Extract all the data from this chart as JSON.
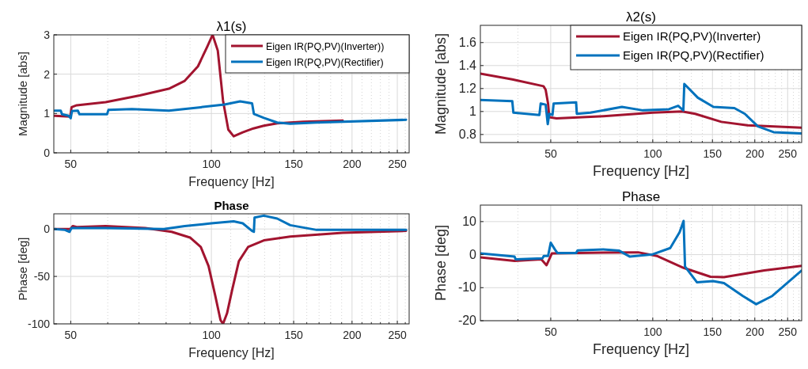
{
  "chart_data": [
    {
      "type": "line",
      "title": "λ1(s)",
      "xlabel": "Frequency [Hz]",
      "ylabel": "Magnitude [abs]",
      "log": "x",
      "grid": true,
      "legend": "top right",
      "xlim": [
        46,
        265
      ],
      "xticks": [
        50,
        {
          "value": 60,
          "label": null
        },
        {
          "value": 70,
          "label": null
        },
        {
          "value": 80,
          "label": null
        },
        {
          "value": 90,
          "label": null
        },
        100,
        {
          "value": 110,
          "label": null
        },
        {
          "value": 120,
          "label": null
        },
        {
          "value": 130,
          "label": null
        },
        {
          "value": 140,
          "label": null
        },
        150,
        {
          "value": 160,
          "label": null
        },
        {
          "value": 170,
          "label": null
        },
        {
          "value": 180,
          "label": null
        },
        {
          "value": 190,
          "label": null
        },
        200,
        {
          "value": 210,
          "label": null
        },
        {
          "value": 220,
          "label": null
        },
        {
          "value": 230,
          "label": null
        },
        {
          "value": 240,
          "label": null
        },
        250,
        {
          "value": 260,
          "label": null
        }
      ],
      "ylim": [
        0,
        3
      ],
      "yticks": [
        0,
        1,
        2,
        3
      ],
      "series": [
        {
          "name": "Eigen IR(PQ,PV)(Inverter))",
          "color": "#a2142f",
          "x": [
            46.2,
            49.9,
            50.2,
            51.5,
            59.4,
            70.3,
            81.1,
            87.7,
            93.6,
            98.0,
            100.6,
            103.2,
            105.9,
            108.7,
            111.6,
            116.7,
            123,
            129.5,
            138.3,
            157.4,
            191
          ],
          "values": [
            0.94,
            0.92,
            1.16,
            1.21,
            1.29,
            1.46,
            1.63,
            1.83,
            2.2,
            2.7,
            3.0,
            2.6,
            1.33,
            0.59,
            0.42,
            0.52,
            0.62,
            0.69,
            0.75,
            0.79,
            0.82
          ]
        },
        {
          "name": "Eigen IR(PQ,PV)(Rectifier)",
          "color": "#0072bd",
          "x": [
            46.2,
            47.6,
            47.9,
            49.5,
            50,
            50.3,
            51.8,
            52.2,
            59.8,
            60.2,
            67.6,
            81.1,
            94.9,
            106.7,
            115.2,
            122.2,
            123.3,
            129.5,
            138.3,
            147.5,
            168,
            261
          ],
          "values": [
            1.07,
            1.07,
            0.98,
            0.94,
            0.88,
            1.06,
            1.07,
            0.98,
            0.98,
            1.09,
            1.11,
            1.07,
            1.16,
            1.23,
            1.31,
            1.26,
            0.99,
            0.89,
            0.77,
            0.74,
            0.77,
            0.84
          ]
        }
      ]
    },
    {
      "type": "line",
      "title": "λ2(s)",
      "xlabel": "Frequency [Hz]",
      "ylabel": "Magnitude [abs]",
      "log": "x",
      "grid": true,
      "legend": "top right",
      "xlim": [
        31,
        275
      ],
      "xticks": [
        {
          "value": 40,
          "label": null
        },
        50,
        {
          "value": 60,
          "label": null
        },
        {
          "value": 70,
          "label": null
        },
        {
          "value": 80,
          "label": null
        },
        {
          "value": 90,
          "label": null
        },
        100,
        {
          "value": 110,
          "label": null
        },
        {
          "value": 120,
          "label": null
        },
        {
          "value": 130,
          "label": null
        },
        {
          "value": 140,
          "label": null
        },
        150,
        {
          "value": 160,
          "label": null
        },
        {
          "value": 170,
          "label": null
        },
        {
          "value": 180,
          "label": null
        },
        {
          "value": 190,
          "label": null
        },
        200,
        {
          "value": 210,
          "label": null
        },
        {
          "value": 220,
          "label": null
        },
        {
          "value": 230,
          "label": null
        },
        {
          "value": 240,
          "label": null
        },
        250,
        {
          "value": 260,
          "label": null
        },
        {
          "value": 270,
          "label": null
        }
      ],
      "ylim": [
        0.73,
        1.75
      ],
      "yticks": [
        0.8,
        1,
        1.2,
        1.4,
        1.6
      ],
      "series": [
        {
          "name": "Eigen IR(PQ,PV)(Inverter)",
          "color": "#a2142f",
          "x": [
            31,
            38.5,
            47.6,
            48.3,
            49.1,
            49.5,
            52.0,
            71.6,
            100,
            122,
            133.4,
            159.3,
            190.3,
            275
          ],
          "values": [
            1.33,
            1.28,
            1.22,
            1.19,
            1.07,
            0.95,
            0.94,
            0.96,
            0.99,
            1.0,
            0.98,
            0.91,
            0.88,
            0.86
          ]
        },
        {
          "name": "Eigen IR(PQ,PV)(Rectifier)",
          "color": "#0072bd",
          "x": [
            31,
            38.5,
            38.8,
            46.3,
            46.7,
            48.3,
            49.0,
            49.5,
            50.6,
            51.0,
            59.4,
            59.7,
            65.5,
            81.1,
            93.5,
            111.6,
            118.8,
            123.1,
            123.9,
            135.8,
            151,
            174.1,
            186.9,
            204.3,
            227.3,
            275
          ],
          "values": [
            1.1,
            1.09,
            0.99,
            0.97,
            1.07,
            1.06,
            0.89,
            0.98,
            0.97,
            1.07,
            1.08,
            0.98,
            0.99,
            1.04,
            1.01,
            1.02,
            1.05,
            1.01,
            1.24,
            1.12,
            1.04,
            1.03,
            0.98,
            0.87,
            0.82,
            0.81
          ]
        }
      ]
    },
    {
      "type": "line",
      "title": "Phase",
      "xlabel": "Frequency [Hz]",
      "ylabel": "Phase [deg]",
      "log": "x",
      "grid": true,
      "xlim": [
        46,
        265
      ],
      "xticks": [
        50,
        {
          "value": 60,
          "label": null
        },
        {
          "value": 70,
          "label": null
        },
        {
          "value": 80,
          "label": null
        },
        {
          "value": 90,
          "label": null
        },
        100,
        {
          "value": 110,
          "label": null
        },
        {
          "value": 120,
          "label": null
        },
        {
          "value": 130,
          "label": null
        },
        {
          "value": 140,
          "label": null
        },
        150,
        {
          "value": 160,
          "label": null
        },
        {
          "value": 170,
          "label": null
        },
        {
          "value": 180,
          "label": null
        },
        {
          "value": 190,
          "label": null
        },
        200,
        {
          "value": 210,
          "label": null
        },
        {
          "value": 220,
          "label": null
        },
        {
          "value": 230,
          "label": null
        },
        {
          "value": 240,
          "label": null
        },
        250,
        {
          "value": 260,
          "label": null
        }
      ],
      "ylim": [
        -100,
        16
      ],
      "yticks": [
        -100,
        -50,
        0
      ],
      "series": [
        {
          "color": "#a2142f",
          "x": [
            46.2,
            49.9,
            50.5,
            51.5,
            59.4,
            72.2,
            82.2,
            90,
            94.9,
            98.6,
            101.9,
            104.6,
            105.9,
            108,
            110.8,
            114.5,
            119.8,
            129.5,
            147.5,
            191,
            261
          ],
          "values": [
            0,
            0,
            3,
            2,
            3,
            1,
            -3,
            -9,
            -19,
            -39,
            -70,
            -96,
            -100,
            -89,
            -64,
            -34,
            -19,
            -12,
            -8,
            -4,
            -2
          ]
        },
        {
          "color": "#0072bd",
          "x": [
            46.2,
            48.6,
            49.7,
            50.2,
            59.4,
            79.1,
            87.7,
            100,
            111.6,
            116.7,
            122.2,
            123.3,
            123.7,
            129.5,
            138.3,
            147.5,
            168,
            191,
            261
          ],
          "values": [
            0,
            -1,
            -3,
            1,
            1,
            0,
            3,
            6,
            8,
            6,
            -2,
            -3,
            12,
            14,
            11,
            4,
            -1,
            -1,
            -1
          ]
        }
      ]
    },
    {
      "type": "line",
      "title": "Phase",
      "xlabel": "Frequency [Hz]",
      "ylabel": "Phase [deg]",
      "log": "x",
      "grid": true,
      "xlim": [
        31,
        275
      ],
      "xticks": [
        {
          "value": 40,
          "label": null
        },
        50,
        {
          "value": 60,
          "label": null
        },
        {
          "value": 70,
          "label": null
        },
        {
          "value": 80,
          "label": null
        },
        {
          "value": 90,
          "label": null
        },
        100,
        {
          "value": 110,
          "label": null
        },
        {
          "value": 120,
          "label": null
        },
        {
          "value": 130,
          "label": null
        },
        {
          "value": 140,
          "label": null
        },
        150,
        {
          "value": 160,
          "label": null
        },
        {
          "value": 170,
          "label": null
        },
        {
          "value": 180,
          "label": null
        },
        {
          "value": 190,
          "label": null
        },
        200,
        {
          "value": 210,
          "label": null
        },
        {
          "value": 220,
          "label": null
        },
        {
          "value": 230,
          "label": null
        },
        {
          "value": 240,
          "label": null
        },
        250,
        {
          "value": 260,
          "label": null
        },
        {
          "value": 270,
          "label": null
        }
      ],
      "ylim": [
        -20,
        15
      ],
      "yticks": [
        -20,
        -10,
        0,
        10
      ],
      "series": [
        {
          "color": "#a2142f",
          "x": [
            31,
            39.1,
            46.9,
            48.6,
            49.5,
            50.4,
            71.4,
            90.5,
            102.8,
            123.3,
            148,
            162.2,
            213.3,
            275
          ],
          "values": [
            -0.8,
            -1.9,
            -1.4,
            -3.2,
            -1.4,
            0.4,
            0.6,
            0.7,
            -0.4,
            -4,
            -6.7,
            -6.8,
            -4.8,
            -3.4
          ]
        },
        {
          "color": "#0072bd",
          "x": [
            31,
            39.1,
            39.4,
            47.3,
            47.7,
            49.1,
            50,
            51.4,
            52.3,
            59.4,
            60,
            71.4,
            79.6,
            85.6,
            100,
            112.6,
            120,
            123.3,
            124.5,
            135.1,
            150.7,
            162.2,
            184.3,
            201.9,
            225.3,
            275
          ],
          "values": [
            0.4,
            -0.6,
            -1.4,
            -1.1,
            -0.4,
            -0.4,
            3.6,
            1.6,
            0.5,
            0.5,
            1.3,
            1.6,
            1.2,
            -0.6,
            0.1,
            2,
            6.8,
            10.2,
            -3.6,
            -8.4,
            -8,
            -8.6,
            -12.5,
            -15,
            -12.5,
            -4.8
          ]
        }
      ]
    }
  ]
}
